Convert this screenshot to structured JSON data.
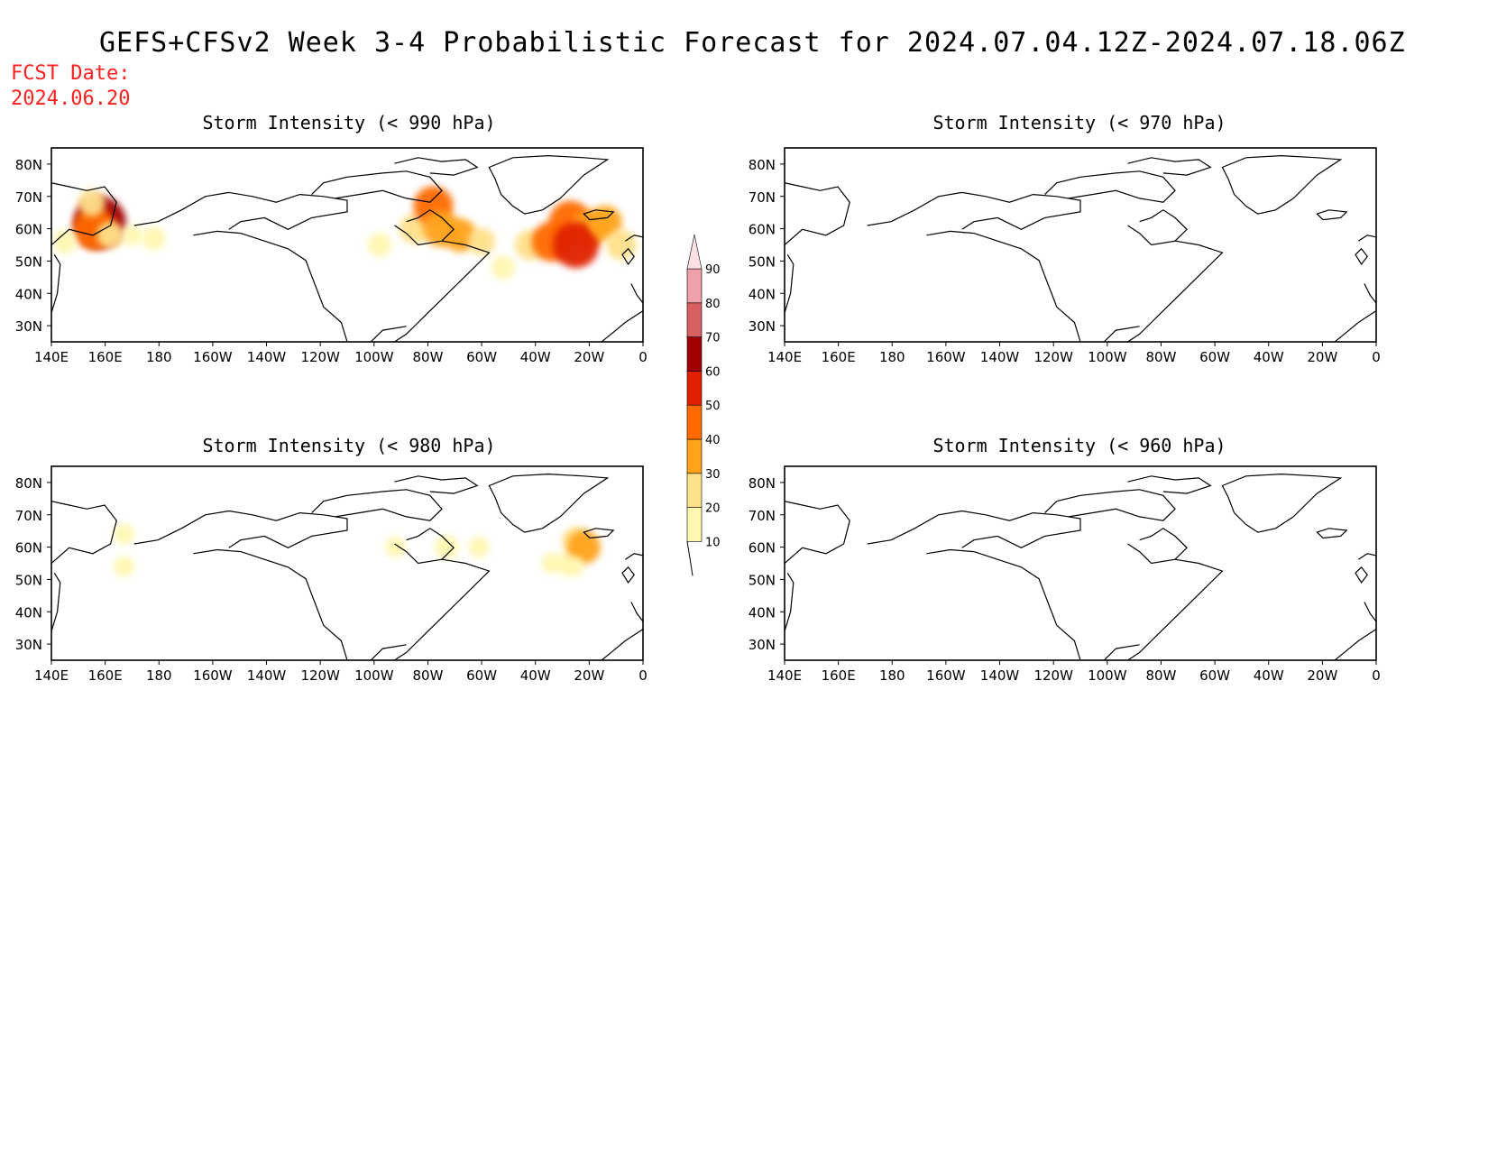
{
  "title": "GEFS+CFSv2 Week 3-4 Probabilistic Forecast for 2024.07.04.12Z-2024.07.18.06Z",
  "fcst_date_label": "FCST Date:",
  "fcst_date_value": "2024.06.20",
  "colors": {
    "fcst_text": "#ff2020",
    "scale": [
      "#fff7b0",
      "#ffe08a",
      "#ffa31a",
      "#ff6a00",
      "#e02000",
      "#a00000",
      "#d86060",
      "#f0a0a8",
      "#fde0e4"
    ]
  },
  "colorbar": {
    "labels": [
      "10",
      "20",
      "30",
      "40",
      "50",
      "60",
      "70",
      "80",
      "90"
    ]
  },
  "axes": {
    "lon_ticks": [
      "140E",
      "160E",
      "180",
      "160W",
      "140W",
      "120W",
      "100W",
      "80W",
      "60W",
      "40W",
      "20W",
      "0"
    ],
    "lat_ticks": [
      "80N",
      "70N",
      "60N",
      "50N",
      "40N",
      "30N"
    ]
  },
  "chart_data": [
    {
      "type": "heatmap",
      "title": "Storm Intensity (< 990 hPa)",
      "xlim": [
        140,
        360
      ],
      "ylim": [
        25,
        85
      ],
      "patches": [
        {
          "lon": 158,
          "lat": 62,
          "value": 60
        },
        {
          "lon": 156,
          "lat": 60,
          "value": 45
        },
        {
          "lon": 162,
          "lat": 58,
          "value": 20
        },
        {
          "lon": 170,
          "lat": 58,
          "value": 10
        },
        {
          "lon": 178,
          "lat": 57,
          "value": 15
        },
        {
          "lon": 155,
          "lat": 68,
          "value": 20
        },
        {
          "lon": 145,
          "lat": 56,
          "value": 15
        },
        {
          "lon": 262,
          "lat": 55,
          "value": 15
        },
        {
          "lon": 275,
          "lat": 60,
          "value": 25
        },
        {
          "lon": 282,
          "lat": 67,
          "value": 40
        },
        {
          "lon": 285,
          "lat": 60,
          "value": 35
        },
        {
          "lon": 292,
          "lat": 58,
          "value": 30
        },
        {
          "lon": 300,
          "lat": 56,
          "value": 20
        },
        {
          "lon": 308,
          "lat": 48,
          "value": 15
        },
        {
          "lon": 318,
          "lat": 55,
          "value": 25
        },
        {
          "lon": 326,
          "lat": 56,
          "value": 40
        },
        {
          "lon": 333,
          "lat": 62,
          "value": 45
        },
        {
          "lon": 340,
          "lat": 60,
          "value": 35
        },
        {
          "lon": 335,
          "lat": 55,
          "value": 50
        },
        {
          "lon": 346,
          "lat": 62,
          "value": 30
        },
        {
          "lon": 352,
          "lat": 55,
          "value": 25
        }
      ]
    },
    {
      "type": "heatmap",
      "title": "Storm Intensity (< 970 hPa)",
      "xlim": [
        140,
        360
      ],
      "ylim": [
        25,
        85
      ],
      "patches": []
    },
    {
      "type": "heatmap",
      "title": "Storm Intensity (< 980 hPa)",
      "xlim": [
        140,
        360
      ],
      "ylim": [
        25,
        85
      ],
      "patches": [
        {
          "lon": 167,
          "lat": 64,
          "value": 10
        },
        {
          "lon": 167,
          "lat": 54,
          "value": 10
        },
        {
          "lon": 268,
          "lat": 60,
          "value": 10
        },
        {
          "lon": 287,
          "lat": 60,
          "value": 15
        },
        {
          "lon": 299,
          "lat": 60,
          "value": 10
        },
        {
          "lon": 326,
          "lat": 55,
          "value": 10
        },
        {
          "lon": 331,
          "lat": 55,
          "value": 10
        },
        {
          "lon": 335,
          "lat": 62,
          "value": 20
        },
        {
          "lon": 338,
          "lat": 60,
          "value": 30
        },
        {
          "lon": 334,
          "lat": 54,
          "value": 10
        }
      ]
    },
    {
      "type": "heatmap",
      "title": "Storm Intensity (< 960 hPa)",
      "xlim": [
        140,
        360
      ],
      "ylim": [
        25,
        85
      ],
      "patches": []
    }
  ]
}
